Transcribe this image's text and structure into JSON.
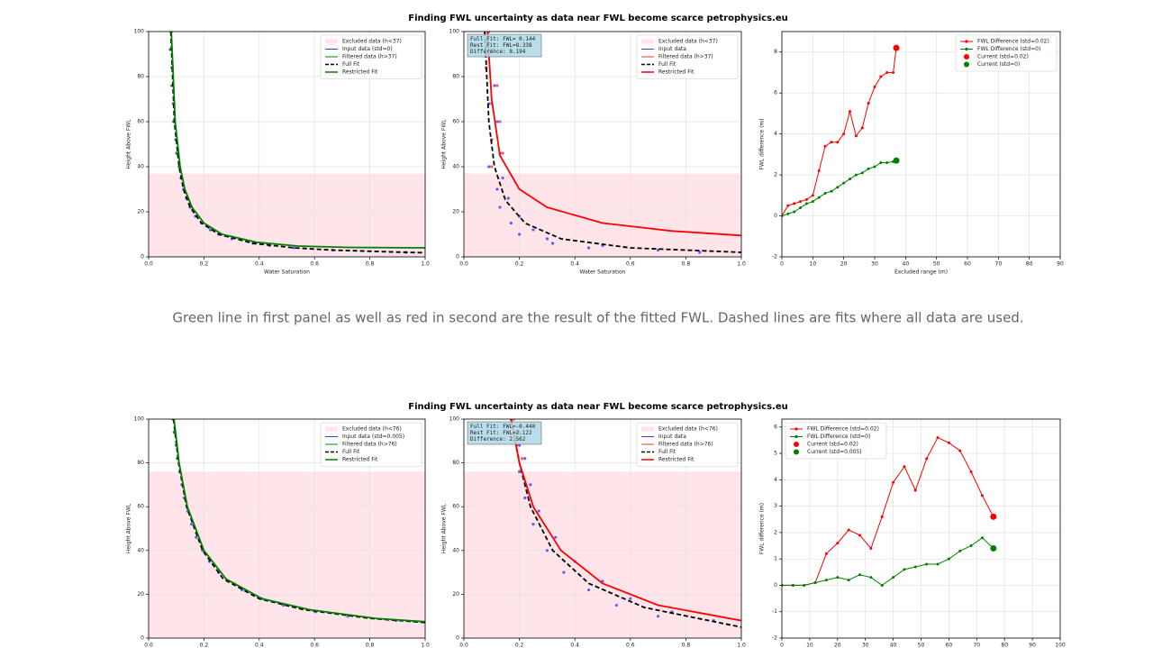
{
  "figures": [
    {
      "title": "Finding FWL uncertainty as data near FWL become scarce petrophysics.eu"
    },
    {
      "title": "Finding FWL uncertainty as data near FWL become scarce petrophysics.eu"
    }
  ],
  "caption": "Green line in first panel as well as red in second are the result of the fitted FWL. Dashed lines are fits where all data are used.",
  "chart_data": [
    {
      "type": "line",
      "xlabel": "Water Saturation",
      "ylabel": "Height Above FWL",
      "xlim": [
        0,
        1
      ],
      "ylim": [
        0,
        100
      ],
      "xticks": [
        {
          "value": 0,
          "label": "0.0"
        },
        0.2,
        0.4,
        0.6,
        0.8,
        {
          "value": 1,
          "label": "1.0"
        }
      ],
      "yticks": [
        0,
        20,
        40,
        60,
        80,
        100
      ],
      "grid": true,
      "legend": "upper right",
      "series": [
        {
          "name": "Excluded data (h<37)",
          "kind": "span",
          "color": "#ffe4ea",
          "values": [
            0,
            37
          ]
        },
        {
          "name": "Input data (std=0)",
          "kind": "points",
          "color": "#3a3aff",
          "x": [
            0.08,
            0.082,
            0.084,
            0.086,
            0.089,
            0.093,
            0.098,
            0.103,
            0.11,
            0.117,
            0.126,
            0.136,
            0.15,
            0.169,
            0.191,
            0.223,
            0.254,
            0.301,
            0.378,
            0.437,
            0.525,
            0.666,
            0.93
          ],
          "values": [
            100,
            92,
            84,
            76,
            68,
            60,
            52,
            46,
            40,
            35,
            30,
            26,
            22,
            18,
            15,
            12,
            10,
            8,
            6,
            5,
            4,
            3,
            2
          ]
        },
        {
          "name": "Filtered data (h>37)",
          "kind": "points",
          "color": "#008000",
          "x": [
            0.083,
            0.078,
            0.086,
            0.084,
            0.092,
            0.09,
            0.1,
            0.101,
            0.112
          ],
          "values": [
            100,
            92,
            84,
            76,
            68,
            60,
            52,
            46,
            40
          ]
        },
        {
          "name": "Full Fit",
          "kind": "line",
          "style": "dashed",
          "color": "#000000",
          "x": [
            0.08,
            0.093,
            0.11,
            0.126,
            0.15,
            0.191,
            0.254,
            0.378,
            0.525,
            0.666,
            0.93,
            1
          ],
          "values": [
            100,
            60,
            40,
            30,
            22,
            15,
            10,
            6,
            4,
            3,
            2,
            1.86
          ]
        },
        {
          "name": "Restricted Fit",
          "kind": "line",
          "color": "#008000",
          "x": [
            0.082,
            0.096,
            0.114,
            0.131,
            0.157,
            0.2,
            0.266,
            0.39,
            0.54,
            0.72,
            1
          ],
          "values": [
            100,
            60,
            40,
            30,
            22,
            15,
            10,
            6.5,
            4.8,
            4.2,
            4
          ]
        }
      ]
    },
    {
      "type": "line",
      "xlabel": "Water Saturation",
      "ylabel": "Height Above FWL",
      "xlim": [
        0,
        1
      ],
      "ylim": [
        0,
        100
      ],
      "xticks": [
        {
          "value": 0,
          "label": "0.0"
        },
        0.2,
        0.4,
        0.6,
        0.8,
        {
          "value": 1,
          "label": "1.0"
        }
      ],
      "yticks": [
        0,
        20,
        40,
        60,
        80,
        100
      ],
      "grid": true,
      "legend": "upper right",
      "textbox": [
        "Full Fit: FWL= 0.144",
        "Rest Fit: FWL=8.338",
        "Difference: 8.194"
      ],
      "series": [
        {
          "name": "Excluded data (h<37)",
          "kind": "span",
          "color": "#ffe4ea",
          "values": [
            0,
            37
          ]
        },
        {
          "name": "Input data",
          "kind": "points",
          "color": "#3a3aff",
          "x": [
            0.09,
            0.1,
            0.08,
            0.11,
            0.09,
            0.12,
            0.1,
            0.13,
            0.09,
            0.14,
            0.12,
            0.16,
            0.13,
            0.2,
            0.17,
            0.25,
            0.2,
            0.3,
            0.32,
            0.5,
            0.45,
            0.7,
            0.85
          ],
          "values": [
            100,
            92,
            84,
            76,
            68,
            60,
            52,
            46,
            40,
            35,
            30,
            26,
            22,
            18,
            15,
            12,
            10,
            8,
            6,
            5,
            4,
            3,
            2
          ]
        },
        {
          "name": "Filtered data (h>37)",
          "kind": "points",
          "color": "#ff3030",
          "x": [
            0.09,
            0.11,
            0.08,
            0.12,
            0.1,
            0.13,
            0.1,
            0.14,
            0.1
          ],
          "values": [
            100,
            92,
            84,
            76,
            68,
            60,
            52,
            46,
            40
          ]
        },
        {
          "name": "Full Fit",
          "kind": "line",
          "style": "dashed",
          "color": "#000000",
          "x": [
            0.075,
            0.09,
            0.11,
            0.15,
            0.22,
            0.35,
            0.6,
            1
          ],
          "values": [
            100,
            60,
            40,
            25,
            15,
            8,
            4,
            2
          ]
        },
        {
          "name": "Restricted Fit",
          "kind": "line",
          "color": "#ff0000",
          "x": [
            0.085,
            0.1,
            0.13,
            0.2,
            0.3,
            0.5,
            0.75,
            1
          ],
          "values": [
            100,
            70,
            45,
            30,
            22,
            15,
            11.5,
            9.5
          ]
        }
      ]
    },
    {
      "type": "line",
      "xlabel": "Excluded range (m)",
      "ylabel": "FWL difference (m)",
      "xlim": [
        0,
        90
      ],
      "ylim": [
        -2,
        9
      ],
      "xticks": [
        0,
        10,
        20,
        30,
        40,
        50,
        60,
        70,
        80,
        90
      ],
      "yticks": [
        -2,
        0,
        2,
        4,
        6,
        8
      ],
      "grid": true,
      "legend": "upper right",
      "series": [
        {
          "name": "FWL Difference (std=0.02)",
          "kind": "linepoints",
          "color": "#ff0000",
          "x": [
            0,
            2,
            4,
            6,
            8,
            10,
            12,
            14,
            16,
            18,
            20,
            22,
            24,
            26,
            28,
            30,
            32,
            34,
            36,
            37
          ],
          "values": [
            0,
            0.5,
            0.6,
            0.7,
            0.8,
            1,
            2.2,
            3.4,
            3.6,
            3.6,
            4,
            5.1,
            3.9,
            4.3,
            5.5,
            6.3,
            6.8,
            7,
            7,
            8.2
          ]
        },
        {
          "name": "FWL Difference (std=0)",
          "kind": "linepoints",
          "color": "#008000",
          "x": [
            0,
            2,
            4,
            6,
            8,
            10,
            12,
            14,
            16,
            18,
            20,
            22,
            24,
            26,
            28,
            30,
            32,
            34,
            36,
            37
          ],
          "values": [
            0,
            0.1,
            0.2,
            0.4,
            0.6,
            0.7,
            0.9,
            1.1,
            1.2,
            1.4,
            1.6,
            1.8,
            2,
            2.1,
            2.3,
            2.4,
            2.6,
            2.6,
            2.65,
            2.7
          ]
        },
        {
          "name": "Current (std=0.02)",
          "kind": "marker",
          "color": "#ff0000",
          "x": [
            37
          ],
          "values": [
            8.2
          ]
        },
        {
          "name": "Current (std=0)",
          "kind": "marker",
          "color": "#008000",
          "x": [
            37
          ],
          "values": [
            2.7
          ]
        }
      ]
    },
    {
      "type": "line",
      "ylabel": "Height Above FWL",
      "xlim": [
        0,
        1
      ],
      "ylim": [
        0,
        100
      ],
      "xticks": [
        {
          "value": 0,
          "label": "0.0"
        },
        0.2,
        0.4,
        0.6,
        0.8,
        {
          "value": 1,
          "label": "1.0"
        }
      ],
      "yticks": [
        0,
        20,
        40,
        60,
        80,
        100
      ],
      "grid": true,
      "legend": "upper right",
      "series": [
        {
          "name": "Excluded data (h<76)",
          "kind": "span",
          "color": "#ffe4ea",
          "values": [
            0,
            76
          ]
        },
        {
          "name": "Input data (std=0.005)",
          "kind": "points",
          "color": "#3a3aff",
          "x": [
            0.09,
            0.095,
            0.1,
            0.105,
            0.112,
            0.12,
            0.129,
            0.141,
            0.155,
            0.172,
            0.195,
            0.22,
            0.253,
            0.289,
            0.338,
            0.409,
            0.487,
            0.603,
            0.72,
            0.895
          ],
          "values": [
            100,
            94,
            88,
            82,
            76,
            70,
            64,
            58,
            52,
            46,
            40,
            35,
            30,
            26,
            22,
            18,
            15,
            12,
            10,
            8
          ]
        },
        {
          "name": "Filtered data (h>76)",
          "kind": "points",
          "color": "#008000",
          "x": [
            0.088,
            0.092,
            0.101,
            0.104
          ],
          "values": [
            100,
            94,
            88,
            82
          ]
        },
        {
          "name": "Full Fit",
          "kind": "line",
          "style": "dashed",
          "color": "#000000",
          "x": [
            0.09,
            0.108,
            0.137,
            0.195,
            0.27,
            0.4,
            0.56,
            0.8,
            1
          ],
          "values": [
            100,
            80,
            60,
            40,
            27,
            18,
            13,
            9,
            7.1
          ]
        },
        {
          "name": "Restricted Fit",
          "kind": "line",
          "color": "#008000",
          "x": [
            0.092,
            0.11,
            0.14,
            0.2,
            0.28,
            0.41,
            0.58,
            0.82,
            1
          ],
          "values": [
            100,
            80,
            60,
            40,
            27,
            18,
            13,
            9,
            7.5
          ]
        }
      ]
    },
    {
      "type": "line",
      "ylabel": "Height Above FWL",
      "xlim": [
        0,
        1
      ],
      "ylim": [
        0,
        100
      ],
      "xticks": [
        {
          "value": 0,
          "label": "0.0"
        },
        0.2,
        0.4,
        0.6,
        0.8,
        {
          "value": 1,
          "label": "1.0"
        }
      ],
      "yticks": [
        0,
        20,
        40,
        60,
        80,
        100
      ],
      "grid": true,
      "legend": "upper right",
      "textbox": [
        "Full Fit: FWL=-0.440",
        "Rest Fit: FWL=2.122",
        "Difference: 2.562"
      ],
      "series": [
        {
          "name": "Excluded data (h<76)",
          "kind": "span",
          "color": "#ffe4ea",
          "values": [
            0,
            76
          ]
        },
        {
          "name": "Input data",
          "kind": "points",
          "color": "#3a3aff",
          "x": [
            0.17,
            0.19,
            0.2,
            0.22,
            0.2,
            0.24,
            0.22,
            0.27,
            0.25,
            0.33,
            0.3,
            0.4,
            0.36,
            0.5,
            0.45,
            0.6,
            0.55,
            0.75,
            0.7,
            0.9
          ],
          "values": [
            100,
            94,
            88,
            82,
            76,
            70,
            64,
            58,
            52,
            46,
            40,
            35,
            30,
            26,
            22,
            18,
            15,
            12,
            10,
            8
          ]
        },
        {
          "name": "Filtered data (h>76)",
          "kind": "points",
          "color": "#ff3030",
          "x": [
            0.18,
            0.2,
            0.19,
            0.21
          ],
          "values": [
            100,
            94,
            88,
            82
          ]
        },
        {
          "name": "Full Fit",
          "kind": "line",
          "style": "dashed",
          "color": "#000000",
          "x": [
            0.17,
            0.2,
            0.24,
            0.32,
            0.45,
            0.65,
            1
          ],
          "values": [
            100,
            80,
            60,
            40,
            25,
            14,
            5
          ]
        },
        {
          "name": "Restricted Fit",
          "kind": "line",
          "color": "#ff0000",
          "x": [
            0.17,
            0.2,
            0.25,
            0.35,
            0.5,
            0.7,
            1
          ],
          "values": [
            100,
            80,
            60,
            40,
            25,
            15,
            8
          ]
        }
      ]
    },
    {
      "type": "line",
      "ylabel": "FWL difference (m)",
      "xlim": [
        0,
        100
      ],
      "ylim": [
        -2,
        6.3
      ],
      "xticks": [
        0,
        10,
        20,
        30,
        40,
        50,
        60,
        70,
        80,
        90,
        100
      ],
      "yticks": [
        -2,
        -1,
        0,
        1,
        2,
        3,
        4,
        5,
        6
      ],
      "grid": true,
      "legend": "upper left",
      "series": [
        {
          "name": "FWL Difference (std=0.02)",
          "kind": "linepoints",
          "color": "#ff0000",
          "x": [
            0,
            4,
            8,
            12,
            16,
            20,
            24,
            28,
            32,
            36,
            40,
            44,
            48,
            52,
            56,
            60,
            64,
            68,
            72,
            76
          ],
          "values": [
            0,
            0,
            0,
            0.1,
            1.2,
            1.6,
            2.1,
            1.9,
            1.4,
            2.6,
            3.9,
            4.5,
            3.6,
            4.8,
            5.6,
            5.4,
            5.1,
            4.3,
            3.4,
            2.6
          ]
        },
        {
          "name": "FWL Difference (std=0)",
          "kind": "linepoints",
          "color": "#008000",
          "x": [
            0,
            4,
            8,
            12,
            16,
            20,
            24,
            28,
            32,
            36,
            40,
            44,
            48,
            52,
            56,
            60,
            64,
            68,
            72,
            76
          ],
          "values": [
            0,
            0,
            0,
            0.1,
            0.2,
            0.3,
            0.2,
            0.4,
            0.3,
            0,
            0.3,
            0.6,
            0.7,
            0.8,
            0.8,
            1,
            1.3,
            1.5,
            1.8,
            1.4
          ]
        },
        {
          "name": "Current (std=0.02)",
          "kind": "marker",
          "color": "#ff0000",
          "x": [
            76
          ],
          "values": [
            2.6
          ]
        },
        {
          "name": "Current (std=0.005)",
          "kind": "marker",
          "color": "#008000",
          "x": [
            76
          ],
          "values": [
            1.4
          ]
        }
      ]
    }
  ]
}
